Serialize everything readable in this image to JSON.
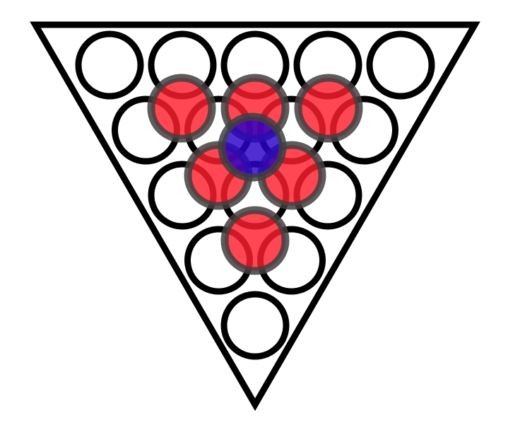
{
  "colors": {
    "background": "#ffffff",
    "outline": "#000000",
    "highlight": "#ff1f2d",
    "center": "#2a00c8",
    "halo": "#404040"
  },
  "frame": {
    "shape": "inverted-triangle"
  },
  "rows": [
    {
      "count": 5,
      "highlighted": []
    },
    {
      "count": 4,
      "highlighted": []
    },
    {
      "count": 3,
      "highlighted": []
    },
    {
      "count": 2,
      "highlighted": []
    },
    {
      "count": 1,
      "highlighted": []
    }
  ],
  "overlay": {
    "upper_row": {
      "count": 3,
      "color": "highlight"
    },
    "middle_row": {
      "count": 2,
      "color": "highlight"
    },
    "lower_row": {
      "count": 1,
      "color": "highlight"
    },
    "center": {
      "count": 1,
      "color": "center"
    }
  }
}
